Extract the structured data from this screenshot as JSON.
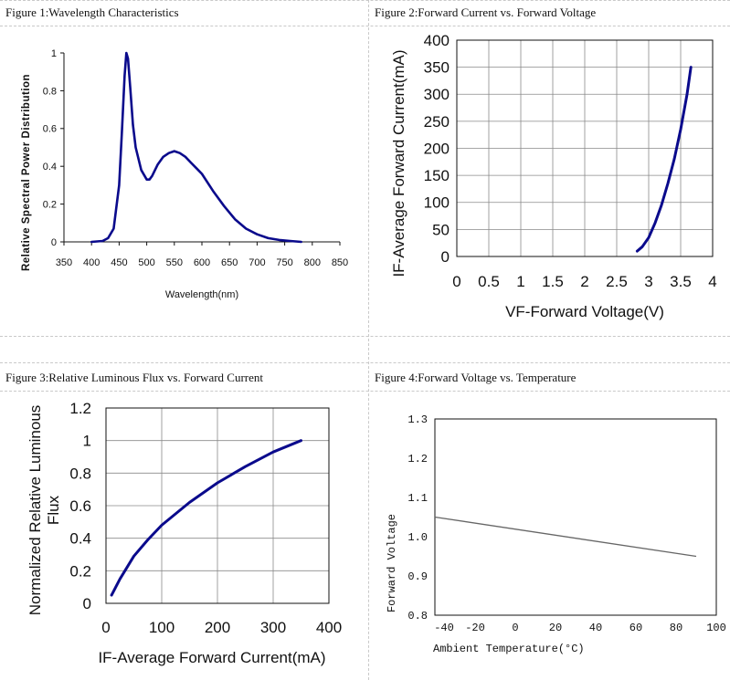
{
  "chart_data": [
    {
      "type": "line",
      "title": "Figure 1:Wavelength Characteristics",
      "xlabel": "Wavelength(nm)",
      "ylabel": "Relative Spectral Power Distribution",
      "xlim": [
        350,
        850
      ],
      "ylim": [
        0,
        1
      ],
      "xticks": [
        "350",
        "400",
        "450",
        "500",
        "550",
        "600",
        "650",
        "700",
        "750",
        "800",
        "850"
      ],
      "yticks": [
        "0",
        "0.2",
        "0.4",
        "0.6",
        "0.8",
        "1"
      ],
      "grid": false,
      "series": [
        {
          "color": "#0a0a8c",
          "x": [
            400,
            420,
            430,
            440,
            450,
            455,
            460,
            463,
            466,
            470,
            475,
            480,
            490,
            500,
            505,
            510,
            520,
            530,
            540,
            550,
            560,
            570,
            580,
            590,
            600,
            620,
            640,
            660,
            680,
            700,
            720,
            740,
            760,
            780
          ],
          "y": [
            0.0,
            0.005,
            0.02,
            0.07,
            0.3,
            0.58,
            0.88,
            1.0,
            0.97,
            0.82,
            0.62,
            0.5,
            0.38,
            0.33,
            0.33,
            0.35,
            0.41,
            0.45,
            0.47,
            0.48,
            0.47,
            0.45,
            0.42,
            0.39,
            0.36,
            0.27,
            0.19,
            0.12,
            0.07,
            0.04,
            0.02,
            0.01,
            0.005,
            0.0
          ]
        }
      ]
    },
    {
      "type": "line",
      "title": "Figure 2:Forward Current vs. Forward Voltage",
      "xlabel": "VF-Forward Voltage(V)",
      "ylabel": "IF-Average Forward Current(mA)",
      "xlim": [
        0,
        4
      ],
      "ylim": [
        0,
        400
      ],
      "xticks": [
        "0",
        "0.5",
        "1",
        "1.5",
        "2",
        "2.5",
        "3",
        "3.5",
        "4"
      ],
      "yticks": [
        "0",
        "50",
        "100",
        "150",
        "200",
        "250",
        "300",
        "350",
        "400"
      ],
      "grid": true,
      "series": [
        {
          "color": "#0a0a8c",
          "x": [
            2.82,
            2.9,
            3.0,
            3.1,
            3.2,
            3.3,
            3.4,
            3.5,
            3.6,
            3.66
          ],
          "y": [
            10,
            18,
            35,
            62,
            95,
            135,
            180,
            235,
            300,
            350
          ]
        }
      ]
    },
    {
      "type": "line",
      "title": "Figure 3:Relative Luminous Flux vs. Forward Current",
      "xlabel": "IF-Average Forward Current(mA)",
      "ylabel": "Normalized Relative Luminous Flux",
      "xlim": [
        0,
        400
      ],
      "ylim": [
        0,
        1.2
      ],
      "xticks": [
        "0",
        "100",
        "200",
        "300",
        "400"
      ],
      "yticks": [
        "0",
        "0.2",
        "0.4",
        "0.6",
        "0.8",
        "1",
        "1.2"
      ],
      "grid": true,
      "series": [
        {
          "color": "#0a0a8c",
          "x": [
            10,
            25,
            50,
            75,
            100,
            150,
            200,
            250,
            300,
            350
          ],
          "y": [
            0.05,
            0.15,
            0.29,
            0.39,
            0.48,
            0.62,
            0.74,
            0.84,
            0.93,
            1.0
          ]
        }
      ]
    },
    {
      "type": "line",
      "title": "Figure 4:Forward Voltage vs. Temperature",
      "xlabel": "Ambient Temperature(°C)",
      "ylabel": "Forward Voltage",
      "xlim": [
        -40,
        100
      ],
      "ylim": [
        0.8,
        1.3
      ],
      "xticks": [
        "-40",
        "-20",
        "0",
        "20",
        "40",
        "60",
        "80",
        "100"
      ],
      "yticks": [
        "0.8",
        "0.9",
        "1.0",
        "1.1",
        "1.2",
        "1.3"
      ],
      "grid": false,
      "series": [
        {
          "color": "#666666",
          "x": [
            -40,
            90
          ],
          "y": [
            1.05,
            0.95
          ]
        }
      ]
    }
  ]
}
